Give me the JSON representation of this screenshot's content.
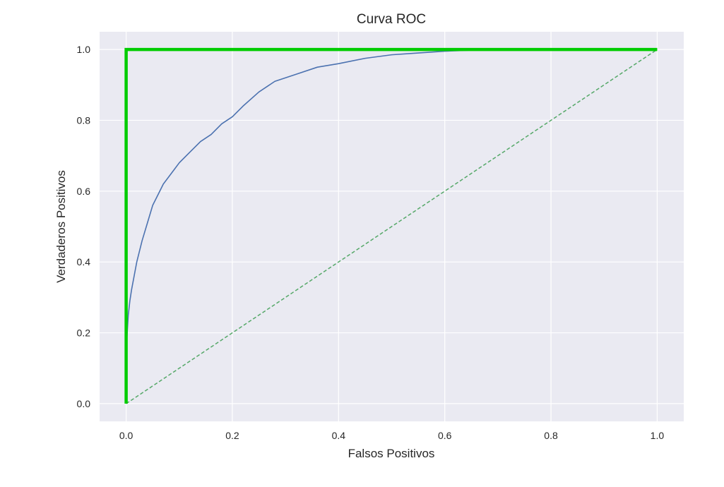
{
  "chart_data": {
    "type": "line",
    "title": "Curva ROC",
    "xlabel": "Falsos Positivos",
    "ylabel": "Verdaderos Positivos",
    "xlim": [
      -0.05,
      1.05
    ],
    "ylim": [
      -0.05,
      1.05
    ],
    "xticks": [
      "0.0",
      "0.2",
      "0.4",
      "0.6",
      "0.8",
      "1.0"
    ],
    "yticks": [
      "0.0",
      "0.2",
      "0.4",
      "0.6",
      "0.8",
      "1.0"
    ],
    "grid": true,
    "background": "#eaeaf2",
    "series": [
      {
        "style": "solid-thin",
        "color": "#4c72b0",
        "x": [
          0.0,
          0.002,
          0.004,
          0.007,
          0.01,
          0.015,
          0.02,
          0.03,
          0.04,
          0.05,
          0.06,
          0.07,
          0.08,
          0.09,
          0.1,
          0.12,
          0.14,
          0.16,
          0.18,
          0.2,
          0.22,
          0.25,
          0.28,
          0.32,
          0.36,
          0.4,
          0.45,
          0.5,
          0.55,
          0.6,
          0.65,
          0.7,
          0.8,
          0.9,
          1.0
        ],
        "y": [
          0.15,
          0.2,
          0.25,
          0.29,
          0.32,
          0.36,
          0.4,
          0.46,
          0.51,
          0.56,
          0.59,
          0.62,
          0.64,
          0.66,
          0.68,
          0.71,
          0.74,
          0.76,
          0.79,
          0.81,
          0.84,
          0.88,
          0.91,
          0.93,
          0.95,
          0.96,
          0.975,
          0.985,
          0.99,
          0.995,
          0.998,
          1.0,
          1.0,
          1.0,
          1.0
        ]
      },
      {
        "style": "dashed",
        "color": "#55a868",
        "x": [
          0.0,
          1.0
        ],
        "y": [
          0.0,
          1.0
        ]
      },
      {
        "style": "solid-thick",
        "color": "#00cc00",
        "x": [
          0.0,
          0.0,
          1.0
        ],
        "y": [
          0.0,
          1.0,
          1.0
        ]
      }
    ]
  }
}
